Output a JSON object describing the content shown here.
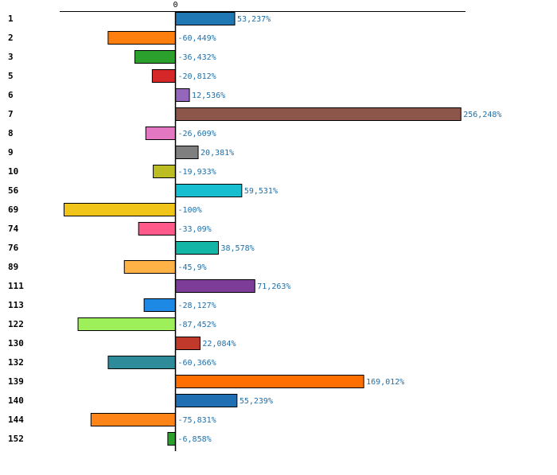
{
  "chart_data": {
    "type": "bar",
    "orientation": "horizontal",
    "title": "",
    "xlabel": "",
    "ylabel": "",
    "zero_tick_label": "0",
    "xlim": [
      -100,
      256.248
    ],
    "grid": false,
    "legend": "none",
    "categories": [
      "1",
      "2",
      "3",
      "5",
      "6",
      "7",
      "8",
      "9",
      "10",
      "56",
      "69",
      "74",
      "76",
      "89",
      "111",
      "113",
      "122",
      "130",
      "132",
      "139",
      "140",
      "144",
      "152"
    ],
    "values": [
      53.237,
      -60.449,
      -36.432,
      -20.812,
      12.536,
      256.248,
      -26.609,
      20.381,
      -19.933,
      59.531,
      -100,
      -33.09,
      38.578,
      -45.9,
      71.263,
      -28.127,
      -87.452,
      22.084,
      -60.366,
      169.012,
      55.239,
      -75.831,
      -6.858
    ],
    "value_labels": [
      "53,237%",
      "-60,449%",
      "-36,432%",
      "-20,812%",
      "12,536%",
      "256,248%",
      "-26,609%",
      "20,381%",
      "-19,933%",
      "59,531%",
      "-100%",
      "-33,09%",
      "38,578%",
      "-45,9%",
      "71,263%",
      "-28,127%",
      "-87,452%",
      "22,084%",
      "-60,366%",
      "169,012%",
      "55,239%",
      "-75,831%",
      "-6,858%"
    ],
    "colors": [
      "#1f77b4",
      "#ff7f0e",
      "#2ca02c",
      "#d62728",
      "#9467bd",
      "#8c564b",
      "#e377c2",
      "#7f7f7f",
      "#bcbd22",
      "#17becf",
      "#f0c419",
      "#ff5a8a",
      "#12b5a6",
      "#ffb347",
      "#7d3c98",
      "#1e88e5",
      "#9ef05a",
      "#c0392b",
      "#2e8b9a",
      "#ff6f00",
      "#1f6fb2",
      "#ff8418",
      "#2ca02c"
    ]
  }
}
